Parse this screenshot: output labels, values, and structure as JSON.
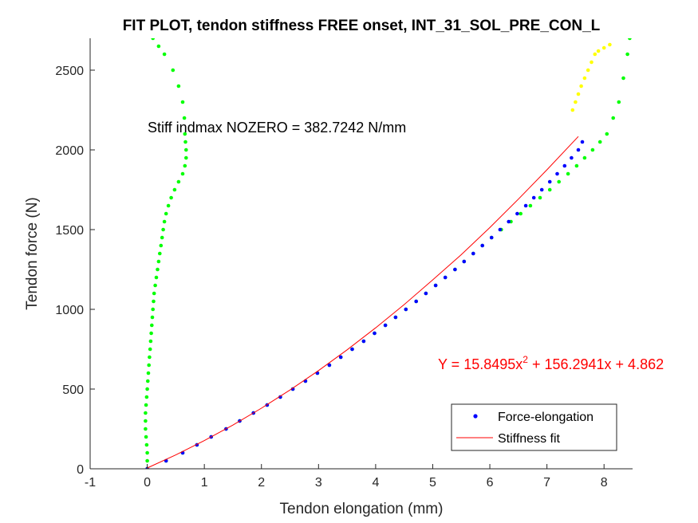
{
  "chart_data": {
    "type": "scatter",
    "title": "FIT PLOT, tendon stiffness FREE onset, INT_31_SOL_PRE_CON_L",
    "xlabel": "Tendon elongation (mm)",
    "ylabel": "Tendon force (N)",
    "xlim": [
      -1,
      8.5
    ],
    "ylim": [
      0,
      2700
    ],
    "xticks": [
      -1,
      0,
      1,
      2,
      3,
      4,
      5,
      6,
      7,
      8
    ],
    "yticks": [
      0,
      500,
      1000,
      1500,
      2000,
      2500
    ],
    "grid": false,
    "legend_position": "bottom-right",
    "annotation": "Stiff indmax NOZERO = 382.7242 N/mm",
    "equation": {
      "prefix": "Y = 15.8495x",
      "exponent": "2",
      "suffix": " + 156.2941x + 4.862"
    },
    "colors": {
      "force": "#0000ff",
      "fit": "#ff0000",
      "green": "#00ff00",
      "yellow": "#ffff00"
    },
    "series": [
      {
        "name": "Force-elongation",
        "style": "dots",
        "color": "#0000ff",
        "x": [
          0,
          0.33,
          0.62,
          0.87,
          1.12,
          1.38,
          1.62,
          1.86,
          2.1,
          2.33,
          2.55,
          2.77,
          2.98,
          3.19,
          3.39,
          3.59,
          3.79,
          3.98,
          4.17,
          4.35,
          4.53,
          4.71,
          4.88,
          5.05,
          5.22,
          5.39,
          5.55,
          5.71,
          5.87,
          6.03,
          6.18,
          6.33,
          6.48,
          6.63,
          6.77,
          6.91,
          7.05,
          7.18,
          7.31,
          7.43,
          7.55,
          7.62
        ],
        "y": [
          0,
          50,
          100,
          150,
          200,
          250,
          300,
          350,
          400,
          450,
          500,
          550,
          600,
          650,
          700,
          750,
          800,
          850,
          900,
          950,
          1000,
          1050,
          1100,
          1150,
          1200,
          1250,
          1300,
          1350,
          1400,
          1450,
          1500,
          1550,
          1600,
          1650,
          1700,
          1750,
          1800,
          1850,
          1900,
          1950,
          2000,
          2050
        ]
      },
      {
        "name": "Stiffness fit",
        "style": "line",
        "color": "#ff0000",
        "x": [
          0,
          0.5,
          1,
          1.5,
          2,
          2.5,
          3,
          3.5,
          4,
          4.5,
          5,
          5.5,
          6,
          6.5,
          7,
          7.55
        ],
        "y": [
          4.9,
          87,
          177,
          274,
          380,
          494,
          616,
          746,
          884,
          1030,
          1185,
          1343,
          1513,
          1691,
          1875,
          2084
        ]
      },
      {
        "style": "dots",
        "color": "#00ff00",
        "x": [
          0,
          0.33,
          0.62,
          0.87,
          1.12,
          1.38,
          1.62,
          1.86,
          2.1,
          2.33,
          2.55,
          2.77,
          2.98,
          3.19,
          3.39,
          3.59,
          3.79,
          3.98,
          4.17,
          4.35,
          4.53,
          4.71,
          4.88,
          5.05,
          5.22,
          5.39,
          5.55,
          5.71,
          5.87,
          6.03,
          6.2,
          6.37,
          6.54,
          6.71,
          6.88,
          7.05,
          7.21,
          7.37,
          7.52,
          7.66,
          7.8,
          7.93,
          8.05,
          8.16,
          8.26,
          8.34,
          8.41,
          8.45
        ],
        "y": [
          0,
          50,
          100,
          150,
          200,
          250,
          300,
          350,
          400,
          450,
          500,
          550,
          600,
          650,
          700,
          750,
          800,
          850,
          900,
          950,
          1000,
          1050,
          1100,
          1150,
          1200,
          1250,
          1300,
          1350,
          1400,
          1450,
          1500,
          1550,
          1600,
          1650,
          1700,
          1750,
          1800,
          1850,
          1900,
          1950,
          2000,
          2050,
          2100,
          2200,
          2300,
          2450,
          2600,
          2700
        ]
      },
      {
        "style": "dots",
        "color": "#00ff00",
        "x": [
          0,
          0,
          0,
          -0.01,
          -0.02,
          -0.03,
          -0.03,
          -0.03,
          -0.02,
          -0.01,
          0,
          0.01,
          0.02,
          0.03,
          0.04,
          0.05,
          0.06,
          0.07,
          0.08,
          0.09,
          0.1,
          0.11,
          0.12,
          0.14,
          0.16,
          0.18,
          0.2,
          0.22,
          0.24,
          0.26,
          0.28,
          0.3,
          0.33,
          0.37,
          0.42,
          0.48,
          0.55,
          0.62,
          0.66,
          0.68,
          0.68,
          0.67,
          0.66,
          0.65,
          0.62,
          0.55,
          0.45,
          0.3,
          0.2,
          0.1
        ],
        "y": [
          0,
          50,
          100,
          150,
          200,
          250,
          300,
          350,
          400,
          450,
          500,
          550,
          600,
          650,
          700,
          750,
          800,
          850,
          900,
          950,
          1000,
          1050,
          1100,
          1150,
          1200,
          1250,
          1300,
          1350,
          1400,
          1450,
          1500,
          1550,
          1600,
          1650,
          1700,
          1750,
          1800,
          1850,
          1900,
          1950,
          2000,
          2050,
          2100,
          2200,
          2300,
          2400,
          2500,
          2600,
          2650,
          2700
        ]
      },
      {
        "style": "dots",
        "color": "#ffff00",
        "x": [
          7.45,
          7.5,
          7.55,
          7.6,
          7.66,
          7.72,
          7.78,
          7.84,
          7.9,
          8.0,
          8.1
        ],
        "y": [
          2250,
          2300,
          2350,
          2400,
          2450,
          2500,
          2550,
          2600,
          2620,
          2640,
          2660
        ]
      }
    ]
  }
}
